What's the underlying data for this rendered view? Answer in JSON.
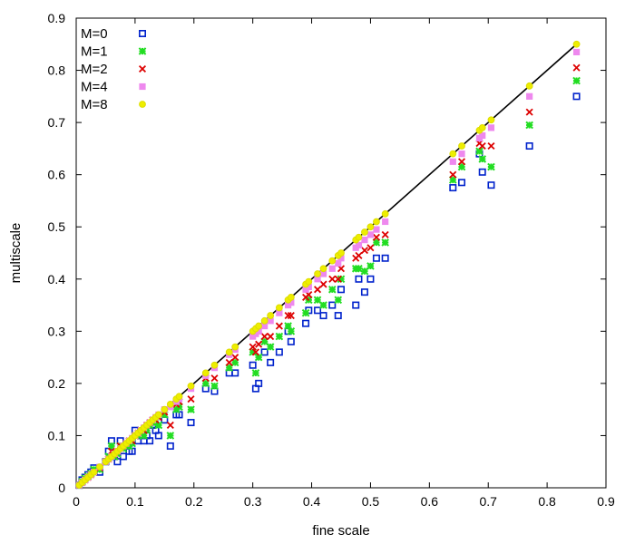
{
  "chart_data": {
    "type": "scatter",
    "xlabel": "fine scale",
    "ylabel": "multiscale",
    "xlim": [
      0,
      0.9
    ],
    "ylim": [
      0,
      0.9
    ],
    "xticks": [
      "0",
      "0.1",
      "0.2",
      "0.3",
      "0.4",
      "0.5",
      "0.6",
      "0.7",
      "0.8",
      "0.9"
    ],
    "yticks": [
      "0",
      "0.1",
      "0.2",
      "0.3",
      "0.4",
      "0.5",
      "0.6",
      "0.7",
      "0.8",
      "0.9"
    ],
    "legend_position": "top-left",
    "grid": false,
    "reference_line": {
      "x": [
        0,
        0.85
      ],
      "y": [
        0,
        0.85
      ],
      "color": "#000000"
    },
    "x": [
      0.005,
      0.01,
      0.015,
      0.02,
      0.025,
      0.03,
      0.04,
      0.05,
      0.055,
      0.06,
      0.065,
      0.07,
      0.075,
      0.08,
      0.085,
      0.09,
      0.095,
      0.1,
      0.105,
      0.11,
      0.115,
      0.12,
      0.125,
      0.13,
      0.135,
      0.14,
      0.15,
      0.16,
      0.17,
      0.175,
      0.195,
      0.22,
      0.235,
      0.26,
      0.27,
      0.3,
      0.305,
      0.31,
      0.32,
      0.33,
      0.345,
      0.36,
      0.365,
      0.39,
      0.395,
      0.41,
      0.42,
      0.435,
      0.445,
      0.45,
      0.475,
      0.48,
      0.49,
      0.5,
      0.51,
      0.525,
      0.64,
      0.655,
      0.685,
      0.69,
      0.705,
      0.77,
      0.85
    ],
    "series": [
      {
        "name": "M=0",
        "marker": "square-open",
        "color": "#0022cc",
        "values": [
          0.005,
          0.015,
          0.02,
          0.025,
          0.03,
          0.038,
          0.03,
          0.05,
          0.07,
          0.09,
          0.06,
          0.05,
          0.09,
          0.06,
          0.08,
          0.07,
          0.07,
          0.11,
          0.09,
          0.1,
          0.09,
          0.1,
          0.09,
          0.12,
          0.11,
          0.1,
          0.13,
          0.08,
          0.14,
          0.14,
          0.125,
          0.19,
          0.185,
          0.22,
          0.22,
          0.235,
          0.19,
          0.2,
          0.26,
          0.24,
          0.26,
          0.3,
          0.28,
          0.315,
          0.34,
          0.34,
          0.33,
          0.35,
          0.33,
          0.38,
          0.35,
          0.4,
          0.375,
          0.4,
          0.44,
          0.44,
          0.575,
          0.585,
          0.64,
          0.605,
          0.58,
          0.655,
          0.75
        ]
      },
      {
        "name": "M=1",
        "marker": "star",
        "color": "#22dd22",
        "values": [
          0.005,
          0.012,
          0.018,
          0.022,
          0.027,
          0.035,
          0.035,
          0.05,
          0.06,
          0.08,
          0.06,
          0.065,
          0.08,
          0.075,
          0.08,
          0.08,
          0.085,
          0.1,
          0.1,
          0.105,
          0.1,
          0.11,
          0.12,
          0.125,
          0.125,
          0.12,
          0.14,
          0.1,
          0.15,
          0.155,
          0.15,
          0.2,
          0.195,
          0.23,
          0.24,
          0.26,
          0.22,
          0.25,
          0.28,
          0.27,
          0.29,
          0.31,
          0.3,
          0.335,
          0.36,
          0.36,
          0.35,
          0.38,
          0.36,
          0.4,
          0.42,
          0.42,
          0.415,
          0.425,
          0.47,
          0.47,
          0.59,
          0.615,
          0.645,
          0.63,
          0.615,
          0.695,
          0.78
        ]
      },
      {
        "name": "M=2",
        "marker": "cross",
        "color": "#dd0000",
        "values": [
          0.005,
          0.01,
          0.015,
          0.02,
          0.025,
          0.03,
          0.038,
          0.05,
          0.055,
          0.07,
          0.065,
          0.07,
          0.08,
          0.08,
          0.085,
          0.09,
          0.09,
          0.1,
          0.105,
          0.11,
          0.11,
          0.12,
          0.125,
          0.13,
          0.13,
          0.135,
          0.145,
          0.12,
          0.16,
          0.165,
          0.17,
          0.21,
          0.21,
          0.24,
          0.25,
          0.27,
          0.26,
          0.275,
          0.29,
          0.29,
          0.31,
          0.33,
          0.33,
          0.365,
          0.37,
          0.38,
          0.39,
          0.4,
          0.4,
          0.42,
          0.44,
          0.445,
          0.455,
          0.46,
          0.48,
          0.485,
          0.6,
          0.625,
          0.66,
          0.655,
          0.655,
          0.72,
          0.805
        ]
      },
      {
        "name": "M=4",
        "marker": "square-filled",
        "color": "#ee88ee",
        "values": [
          0.005,
          0.01,
          0.015,
          0.02,
          0.025,
          0.03,
          0.04,
          0.05,
          0.055,
          0.06,
          0.065,
          0.07,
          0.075,
          0.08,
          0.085,
          0.09,
          0.095,
          0.1,
          0.105,
          0.11,
          0.115,
          0.12,
          0.125,
          0.13,
          0.135,
          0.14,
          0.15,
          0.155,
          0.165,
          0.17,
          0.19,
          0.215,
          0.23,
          0.255,
          0.265,
          0.29,
          0.295,
          0.3,
          0.31,
          0.32,
          0.335,
          0.35,
          0.355,
          0.38,
          0.385,
          0.4,
          0.41,
          0.42,
          0.43,
          0.44,
          0.46,
          0.465,
          0.475,
          0.485,
          0.495,
          0.51,
          0.625,
          0.64,
          0.67,
          0.675,
          0.69,
          0.75,
          0.835
        ]
      },
      {
        "name": "M=8",
        "marker": "circle-filled",
        "color": "#eeee00",
        "values": [
          0.005,
          0.01,
          0.015,
          0.02,
          0.025,
          0.03,
          0.04,
          0.05,
          0.055,
          0.06,
          0.065,
          0.07,
          0.075,
          0.08,
          0.085,
          0.09,
          0.095,
          0.1,
          0.105,
          0.11,
          0.115,
          0.12,
          0.125,
          0.13,
          0.135,
          0.14,
          0.15,
          0.16,
          0.17,
          0.175,
          0.195,
          0.22,
          0.235,
          0.26,
          0.27,
          0.3,
          0.305,
          0.31,
          0.32,
          0.33,
          0.345,
          0.36,
          0.365,
          0.39,
          0.395,
          0.41,
          0.42,
          0.435,
          0.445,
          0.45,
          0.475,
          0.48,
          0.49,
          0.5,
          0.51,
          0.525,
          0.64,
          0.655,
          0.685,
          0.69,
          0.705,
          0.77,
          0.85
        ]
      }
    ]
  }
}
